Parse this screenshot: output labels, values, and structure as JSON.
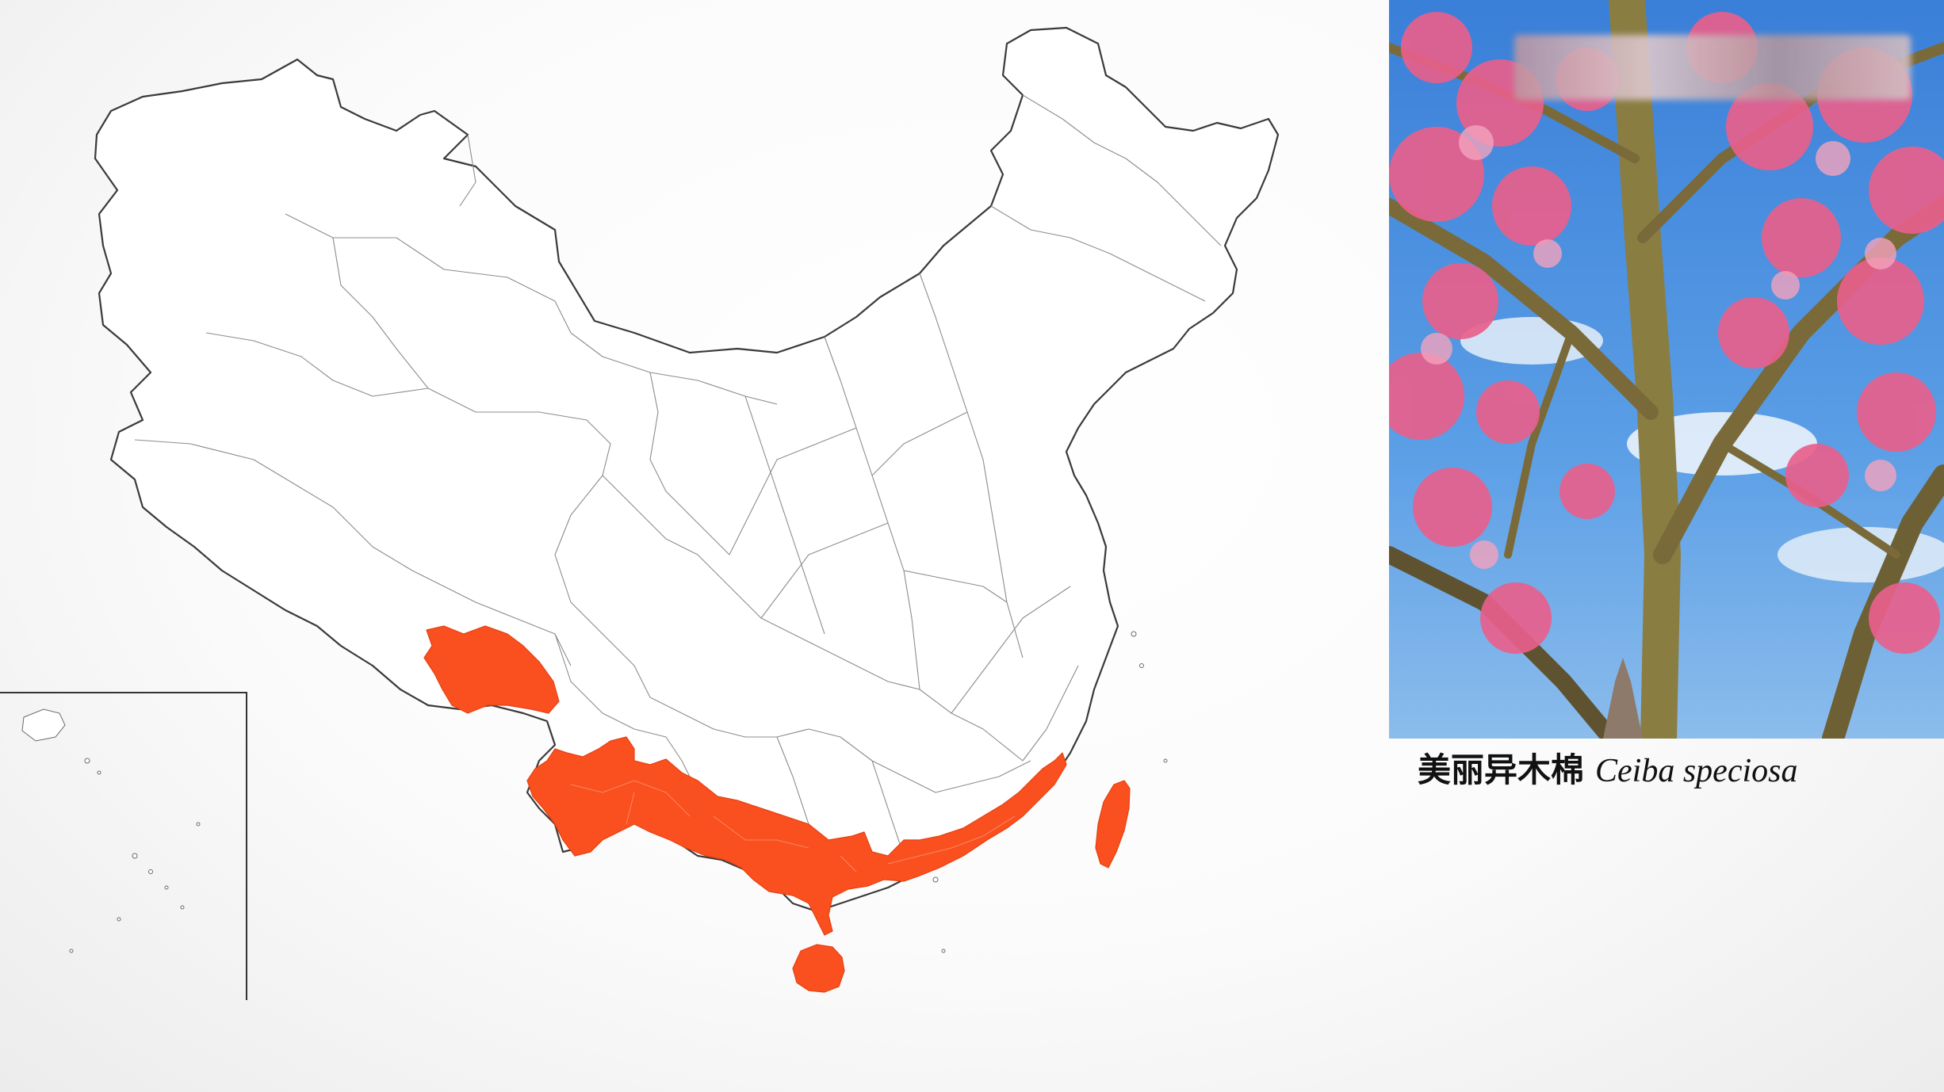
{
  "map": {
    "highlight_color": "#fa4f1e",
    "outline_color": "#3a3a3a",
    "distribution_regions": [
      "Tibet southeast",
      "Yunnan south",
      "Guangxi south",
      "Guangdong",
      "Fujian coast",
      "Hainan",
      "Taiwan"
    ]
  },
  "photo": {
    "subject": "flowering tree",
    "flower_color": "#e8608c",
    "sky_color": "#3f82d6"
  },
  "caption": {
    "chinese_name": "美丽异木棉",
    "scientific_name": "Ceiba speciosa"
  }
}
